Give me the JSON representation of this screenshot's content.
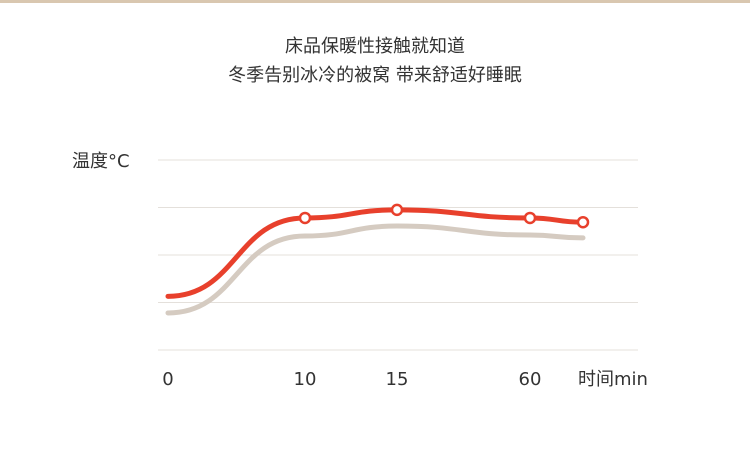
{
  "chart_data": {
    "type": "line",
    "title": "床品保暖性接触就知道",
    "subtitle": "冬季告别冰冷的被窝 带来舒适好睡眠",
    "y_label": "温度°C",
    "x_label": "时间min",
    "categories": [
      "0",
      "10",
      "15",
      "60",
      null
    ],
    "series": [
      {
        "color": "#e8402c",
        "markers": [
          false,
          true,
          true,
          true,
          true
        ],
        "values": [
          1.13,
          2.78,
          2.95,
          2.78,
          2.69
        ]
      },
      {
        "color": "#d5cbc1",
        "markers": [
          false,
          false,
          false,
          false,
          false
        ],
        "values": [
          0.78,
          2.4,
          2.61,
          2.42,
          2.36
        ]
      }
    ],
    "ylim": [
      0,
      4
    ],
    "grid": true
  }
}
